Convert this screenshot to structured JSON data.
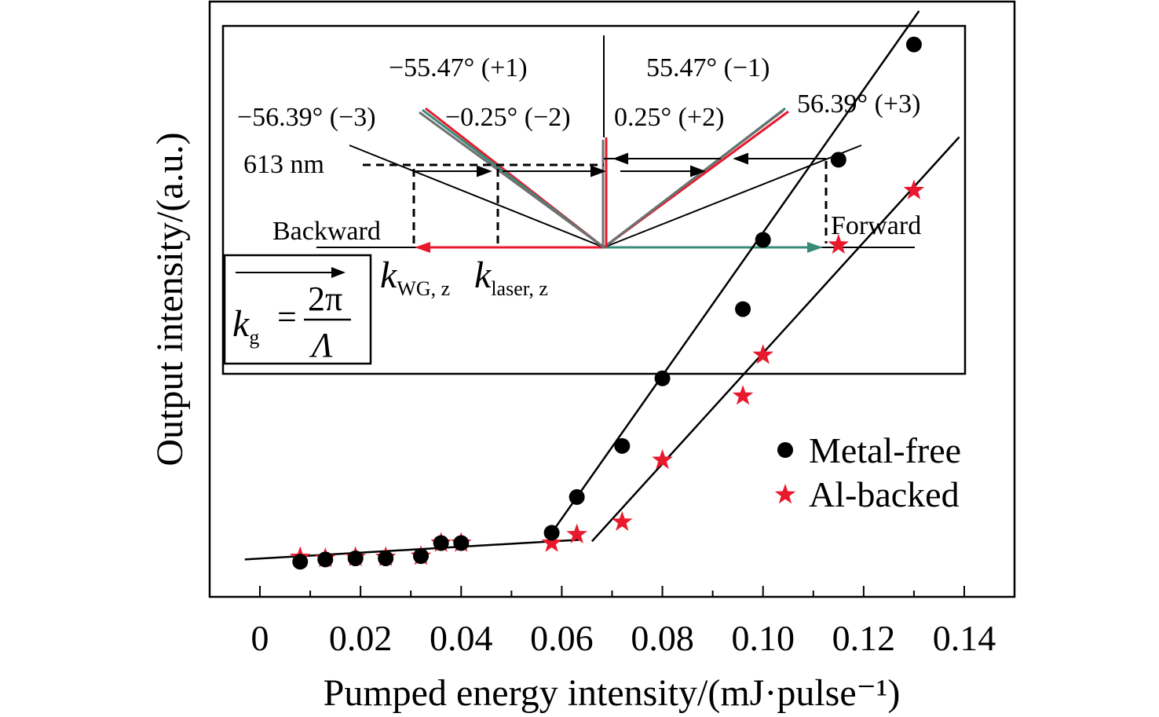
{
  "chart_data": {
    "type": "scatter",
    "title": "",
    "xlabel": "Pumped energy intensity/(mJ·pulse⁻¹)",
    "ylabel": "Output intensity/(a.u.)",
    "xlim": [
      -0.005,
      0.14
    ],
    "ylim": [
      0,
      1
    ],
    "x_ticks": [
      "0",
      "0.02",
      "0.04",
      "0.06",
      "0.08",
      "0.10",
      "0.12",
      "0.14"
    ],
    "grid": false,
    "legend_position": "lower-right",
    "series": [
      {
        "name": "Metal-free",
        "marker": "circle",
        "color": "#000000",
        "points": [
          [
            0.008,
            0.03
          ],
          [
            0.013,
            0.034
          ],
          [
            0.019,
            0.036
          ],
          [
            0.025,
            0.036
          ],
          [
            0.032,
            0.04
          ],
          [
            0.036,
            0.063
          ],
          [
            0.04,
            0.063
          ],
          [
            0.058,
            0.081
          ],
          [
            0.063,
            0.144
          ],
          [
            0.072,
            0.234
          ],
          [
            0.08,
            0.353
          ],
          [
            0.096,
            0.475
          ],
          [
            0.1,
            0.597
          ],
          [
            0.115,
            0.738
          ],
          [
            0.13,
            0.941
          ]
        ]
      },
      {
        "name": "Al-backed",
        "marker": "star",
        "color": "#e8192c",
        "points": [
          [
            0.008,
            0.038
          ],
          [
            0.013,
            0.036
          ],
          [
            0.019,
            0.038
          ],
          [
            0.025,
            0.038
          ],
          [
            0.032,
            0.04
          ],
          [
            0.036,
            0.063
          ],
          [
            0.04,
            0.063
          ],
          [
            0.058,
            0.063
          ],
          [
            0.063,
            0.078
          ],
          [
            0.072,
            0.1
          ],
          [
            0.08,
            0.209
          ],
          [
            0.096,
            0.322
          ],
          [
            0.1,
            0.394
          ],
          [
            0.115,
            0.588
          ],
          [
            0.13,
            0.684
          ]
        ]
      }
    ],
    "fit_lines": [
      {
        "from": [
          -0.003,
          0.034
        ],
        "to": [
          0.064,
          0.069
        ]
      },
      {
        "from": [
          0.058,
          0.081
        ],
        "to": [
          0.131,
          1.0
        ]
      },
      {
        "from": [
          0.066,
          0.066
        ],
        "to": [
          0.139,
          0.778
        ]
      }
    ],
    "inset": {
      "angle_labels": {
        "m_plus1": "−55.47° (+1)",
        "m_minus1": "55.47° (−1)",
        "m_minus3": "−56.39° (−3)",
        "m_minus2": "−0.25° (−2)",
        "m_plus2": "0.25° (+2)",
        "m_plus3": "56.39° (+3)"
      },
      "wavelength": "613 nm",
      "backward": "Backward",
      "forward": "Forward",
      "k_wg": "k",
      "k_wg_sub": "WG, z",
      "k_laser": "k",
      "k_laser_sub": "laser, z",
      "kg_k": "k",
      "kg_sub": "g",
      "kg_eq": "=",
      "kg_num": "2π",
      "kg_den": "Λ",
      "colors": {
        "red": "#e8192c",
        "green": "#3a8a7a",
        "gray": "#707070"
      }
    }
  }
}
